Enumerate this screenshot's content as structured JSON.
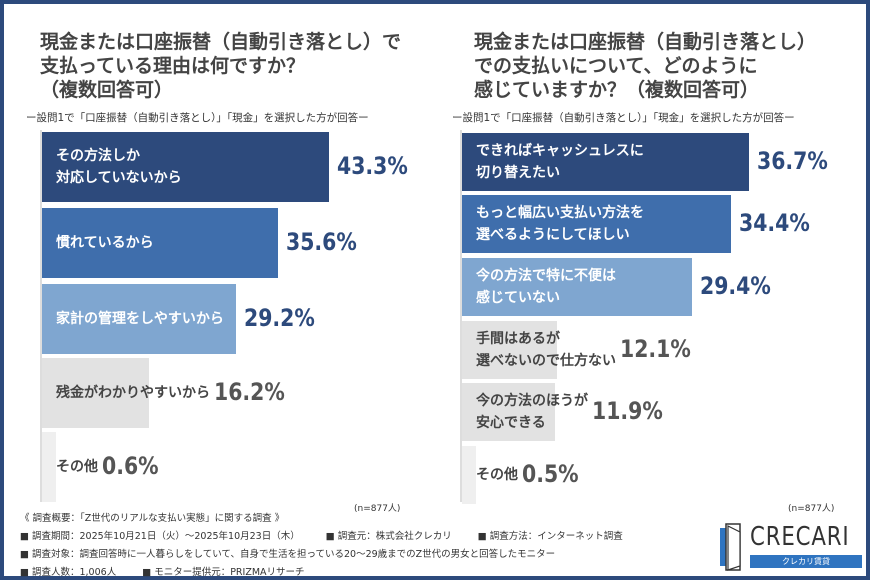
{
  "colors": {
    "frame": "#2d4a7c",
    "bar1": "#2d4a7c",
    "bar2": "#3f6eac",
    "bar3": "#7fa6d0",
    "bar4": "#e2e2e2",
    "bar5": "#efefef",
    "value": "#2d4a7c",
    "value_gray": "#555555"
  },
  "chart_data": [
    {
      "type": "bar",
      "orientation": "horizontal",
      "title": "現金または口座振替（自動引き落とし）で\n支払っている理由は何ですか？\n（複数回答可）",
      "subtitle": "ー設問1で「口座振替（自動引き落とし）」「現金」を選択した方が回答ー",
      "categories": [
        "その方法しか\n対応していないから",
        "慣れているから",
        "家計の管理をしやすいから",
        "残金がわかりやすいから",
        "その他"
      ],
      "values": [
        43.3,
        35.6,
        29.2,
        16.2,
        0.6
      ],
      "labels": [
        "43.3%",
        "35.6%",
        "29.2%",
        "16.2%",
        "0.6%"
      ],
      "note": "(n=877人)"
    },
    {
      "type": "bar",
      "orientation": "horizontal",
      "title": "現金または口座振替（自動引き落とし）\nでの支払いについて、どのように\n感じていますか？（複数回答可）",
      "subtitle": "ー設問1で「口座振替（自動引き落とし）」「現金」を選択した方が回答ー",
      "categories": [
        "できればキャッシュレスに\n切り替えたい",
        "もっと幅広い支払い方法を\n選べるようにしてほしい",
        "今の方法で特に不便は\n感じていない",
        "手間はあるが\n選べないので仕方ない",
        "今の方法のほうが\n安心できる",
        "その他"
      ],
      "values": [
        36.7,
        34.4,
        29.4,
        12.1,
        11.9,
        0.5
      ],
      "labels": [
        "36.7%",
        "34.4%",
        "29.4%",
        "12.1%",
        "11.9%",
        "0.5%"
      ],
      "note": "(n=877人)"
    }
  ],
  "footer": {
    "overview": "《 調査概要：「Z世代のリアルな支払い実態」に関する調査 》",
    "line1": [
      "■ 調査期間：2025年10月21日（火）～2025年10月23日（木）",
      "■ 調査元：株式会社クレカリ",
      "■ 調査方法：インターネット調査"
    ],
    "line2": "■ 調査対象：調査回答時に一人暮らしをしていて、自身で生活を担っている20～29歳までのZ世代の男女と回答したモニター",
    "line3": [
      "■ 調査人数：1,006人",
      "■ モニター提供元：PRIZMAリサーチ"
    ]
  },
  "logo": {
    "name": "CRECARI",
    "tagline": "クレカリ賃貸"
  }
}
